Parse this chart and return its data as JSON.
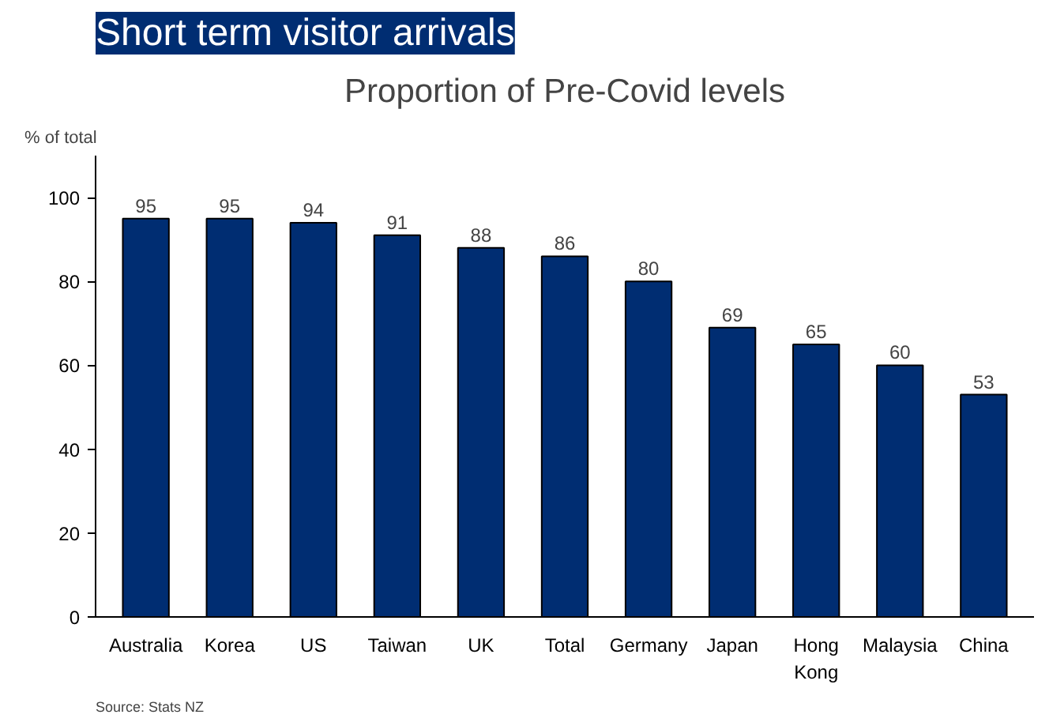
{
  "chart_data": {
    "type": "bar",
    "title": "Short term visitor arrivals",
    "subtitle": "Proportion of Pre-Covid levels",
    "ylabel": "% of total",
    "categories": [
      "Australia",
      "Korea",
      "US",
      "Taiwan",
      "UK",
      "Total",
      "Germany",
      "Japan",
      "Hong Kong",
      "Malaysia",
      "China"
    ],
    "values": [
      95,
      95,
      94,
      91,
      88,
      86,
      80,
      69,
      65,
      60,
      53
    ],
    "color": "#002d72",
    "data_labels": true,
    "grid": false,
    "ylim": [
      0,
      110
    ],
    "yticks": [
      0,
      20,
      40,
      60,
      80,
      100
    ],
    "annotations": [
      "Source: Stats NZ"
    ]
  }
}
